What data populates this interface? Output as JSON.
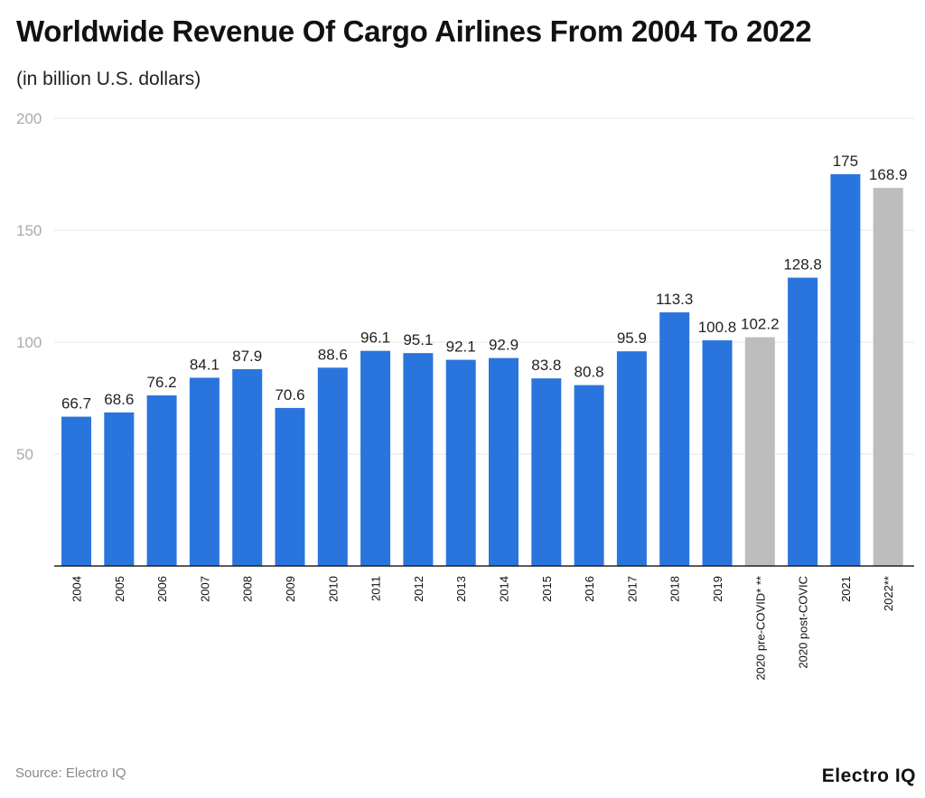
{
  "chart_data": {
    "type": "bar",
    "title": "Worldwide Revenue Of Cargo Airlines From 2004 To 2022",
    "subtitle": "(in billion U.S. dollars)",
    "categories": [
      "2004",
      "2005",
      "2006",
      "2007",
      "2008",
      "2009",
      "2010",
      "2011",
      "2012",
      "2013",
      "2014",
      "2015",
      "2016",
      "2017",
      "2018",
      "2019",
      "2020 pre-COVID* **",
      "2020 post-COVIC",
      "2021",
      "2022**"
    ],
    "values": [
      66.7,
      68.6,
      76.2,
      84.1,
      87.9,
      70.6,
      88.6,
      96.1,
      95.1,
      92.1,
      92.9,
      83.8,
      80.8,
      95.9,
      113.3,
      100.8,
      102.2,
      128.8,
      175,
      168.9
    ],
    "data_labels": [
      "66.7",
      "68.6",
      "76.2",
      "84.1",
      "87.9",
      "70.6",
      "88.6",
      "96.1",
      "95.1",
      "92.1",
      "92.9",
      "83.8",
      "80.8",
      "95.9",
      "113.3",
      "100.8",
      "102.2",
      "128.8",
      "175",
      "168.9"
    ],
    "highlighted": [
      false,
      false,
      false,
      false,
      false,
      false,
      false,
      false,
      false,
      false,
      false,
      false,
      false,
      false,
      false,
      false,
      true,
      false,
      false,
      true
    ],
    "xlabel": "",
    "ylabel": "",
    "ylim": [
      0,
      200
    ],
    "yticks": [
      50,
      100,
      150,
      200
    ],
    "grid": true,
    "legend": "none",
    "colors": {
      "bar": "#2a75dd",
      "highlight": "#bdbdbd"
    }
  },
  "source": "Source: Electro IQ",
  "logo": "Electro IQ"
}
